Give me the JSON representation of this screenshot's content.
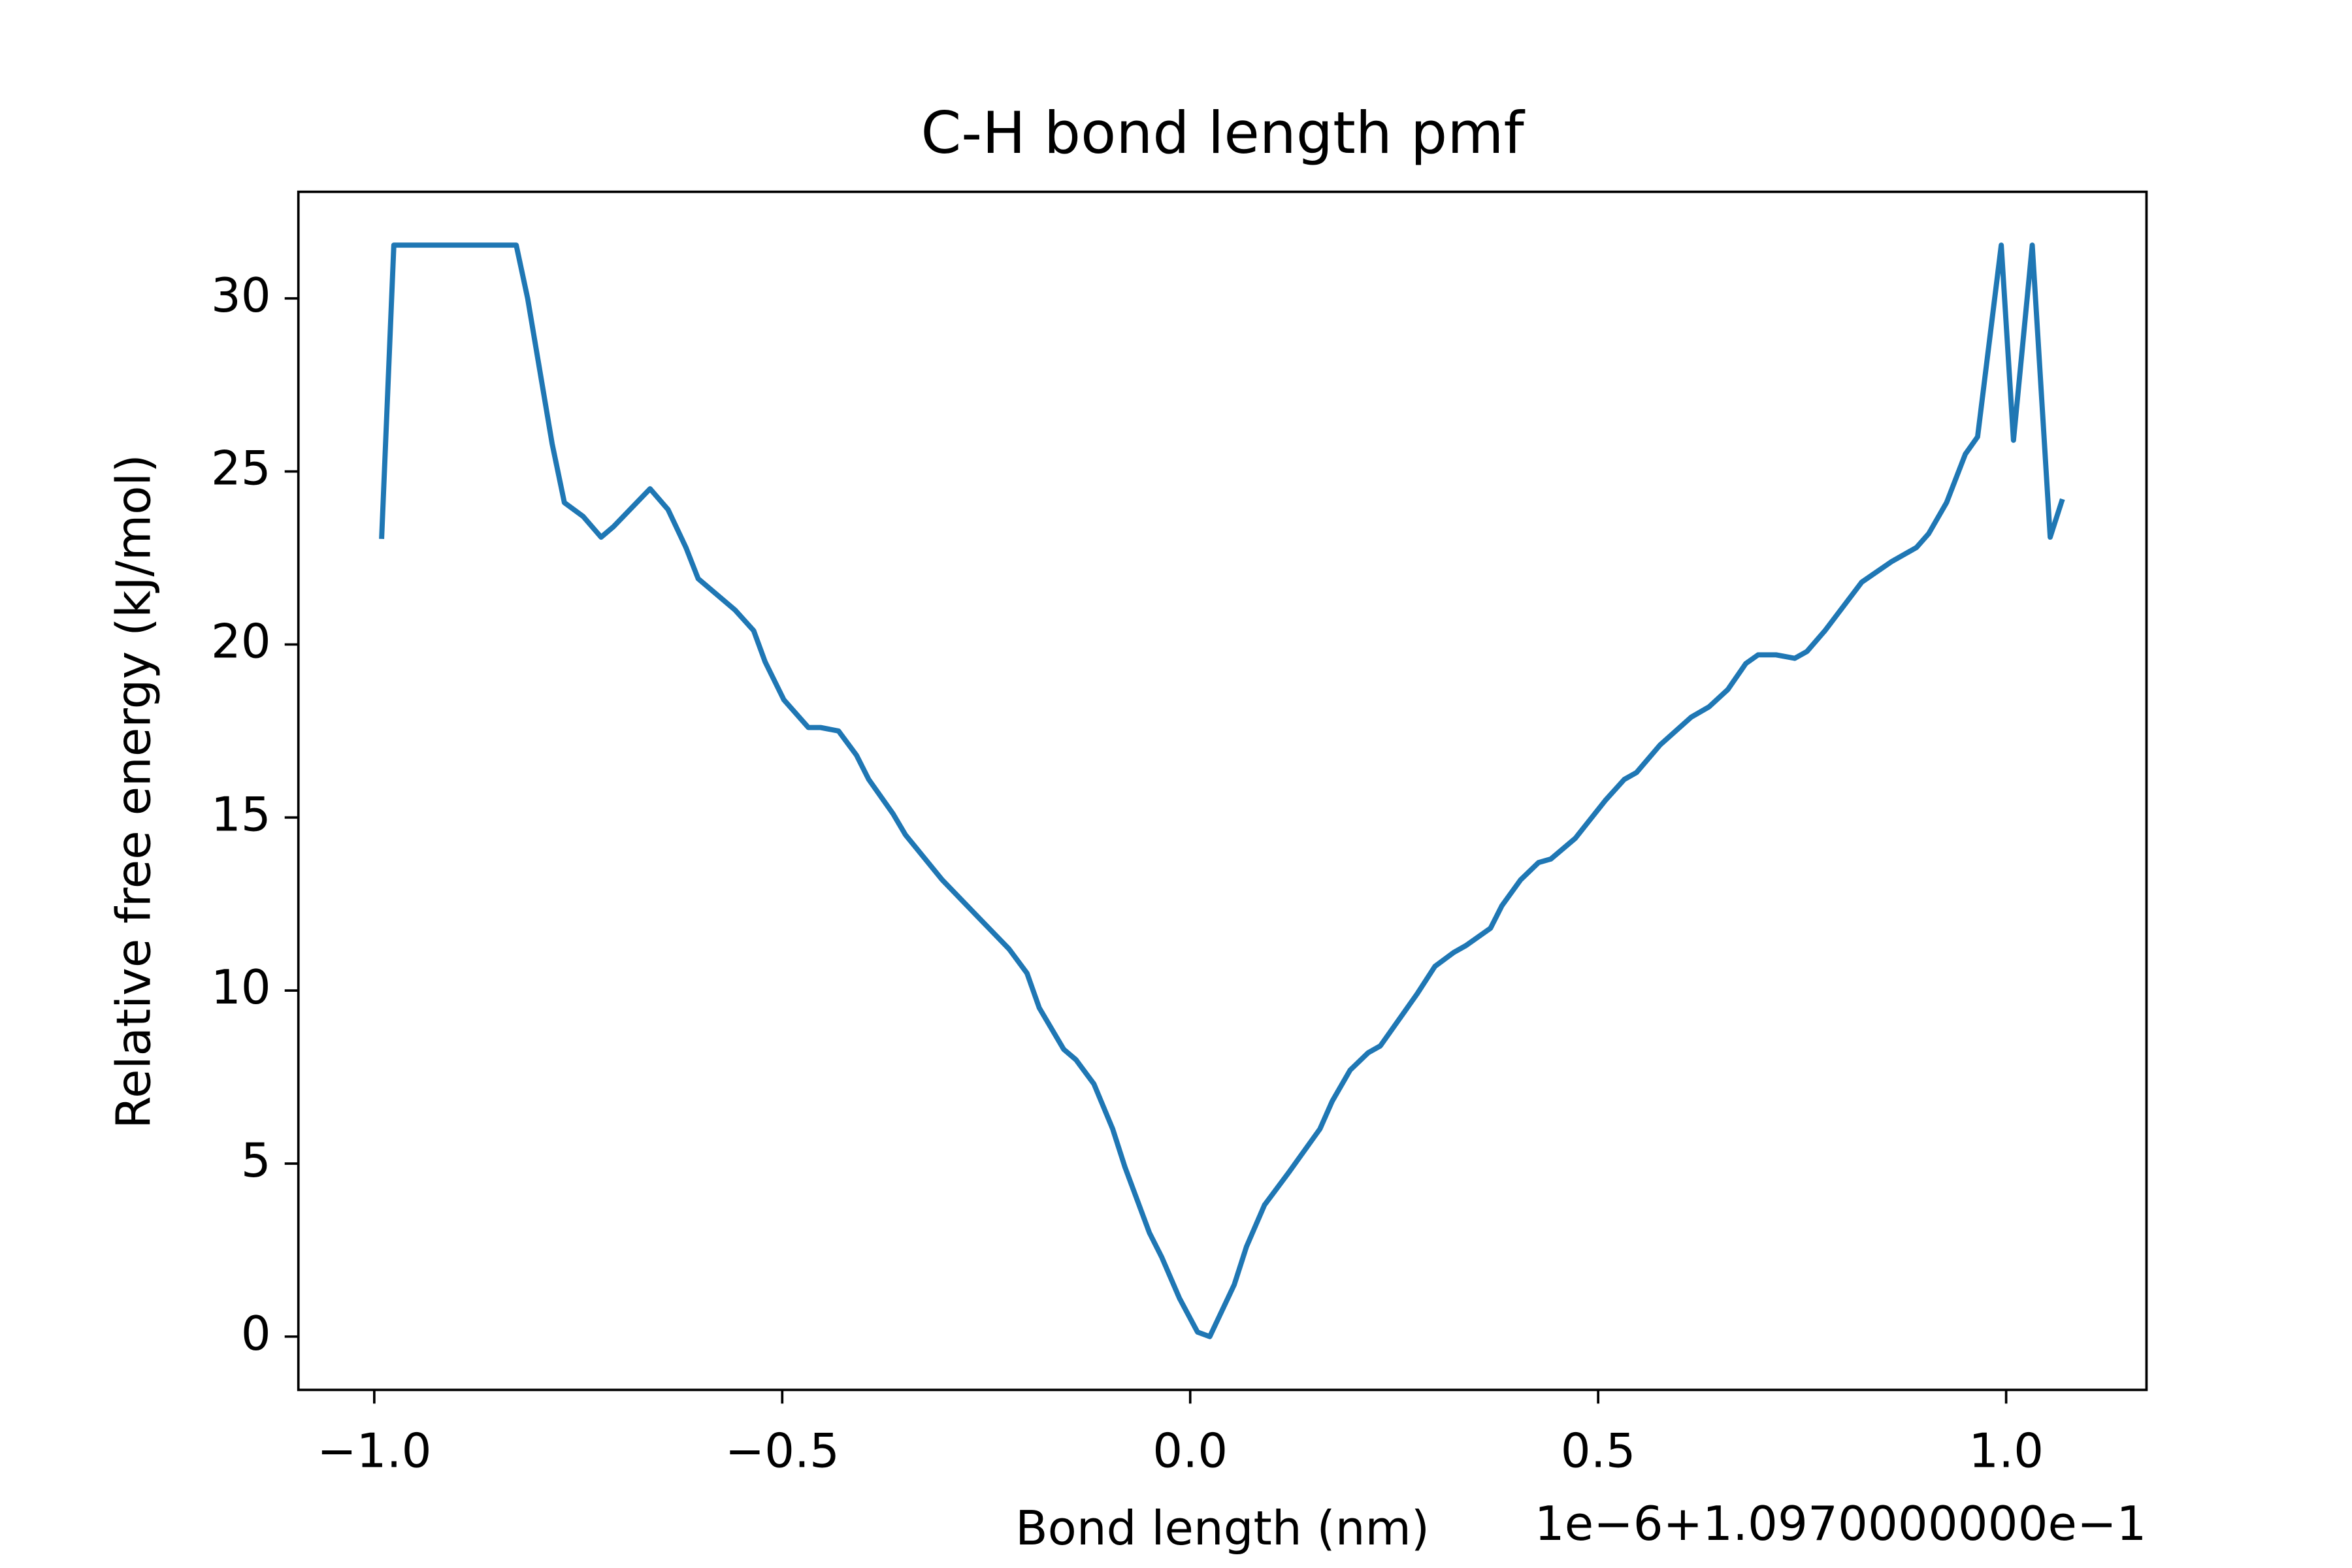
{
  "chart_data": {
    "type": "line",
    "title": "C-H bond length pmf",
    "x_label": "Bond length (nm)",
    "y_label": "Relative free energy (kJ/mol)",
    "x_offset_label": "1e−6+1.0970000000e−1",
    "xlim": [
      -1.093,
      1.172
    ],
    "ylim": [
      -1.54,
      33.08
    ],
    "xticks": [
      {
        "value": -1.0,
        "label": "−1.0"
      },
      {
        "value": -0.5,
        "label": "−0.5"
      },
      {
        "value": 0.0,
        "label": "0.0"
      },
      {
        "value": 0.5,
        "label": "0.5"
      },
      {
        "value": 1.0,
        "label": "1.0"
      }
    ],
    "yticks": [
      0,
      5,
      10,
      15,
      20,
      25,
      30
    ],
    "grid": false,
    "series": [
      {
        "color": "#1f77b4",
        "x": [
          -0.991,
          -0.976,
          -0.826,
          -0.812,
          -0.797,
          -0.782,
          -0.767,
          -0.744,
          -0.722,
          -0.707,
          -0.662,
          -0.64,
          -0.618,
          -0.603,
          -0.558,
          -0.535,
          -0.521,
          -0.498,
          -0.468,
          -0.453,
          -0.431,
          -0.409,
          -0.394,
          -0.364,
          -0.349,
          -0.304,
          -0.259,
          -0.222,
          -0.2,
          -0.185,
          -0.155,
          -0.14,
          -0.118,
          -0.095,
          -0.08,
          -0.05,
          -0.035,
          -0.013,
          0.009,
          0.024,
          0.054,
          0.069,
          0.091,
          0.121,
          0.159,
          0.174,
          0.196,
          0.218,
          0.233,
          0.263,
          0.278,
          0.3,
          0.323,
          0.338,
          0.368,
          0.382,
          0.405,
          0.427,
          0.442,
          0.472,
          0.509,
          0.532,
          0.547,
          0.576,
          0.614,
          0.636,
          0.659,
          0.681,
          0.696,
          0.718,
          0.741,
          0.756,
          0.778,
          0.823,
          0.86,
          0.89,
          0.905,
          0.927,
          0.95,
          0.965,
          0.994,
          1.009,
          1.032,
          1.054,
          1.069
        ],
        "values": [
          23.05,
          31.54,
          31.54,
          30.0,
          27.9,
          25.8,
          24.1,
          23.7,
          23.1,
          23.4,
          24.5,
          23.9,
          22.8,
          21.9,
          21.0,
          20.4,
          19.5,
          18.4,
          17.6,
          17.6,
          17.5,
          16.8,
          16.1,
          15.1,
          14.5,
          13.2,
          12.1,
          11.2,
          10.5,
          9.5,
          8.3,
          8.0,
          7.3,
          6.0,
          4.9,
          3.0,
          2.3,
          1.1,
          0.13,
          0,
          1.5,
          2.6,
          3.8,
          4.75,
          6.0,
          6.8,
          7.7,
          8.2,
          8.4,
          9.4,
          9.9,
          10.7,
          11.1,
          11.3,
          11.8,
          12.45,
          13.2,
          13.7,
          13.8,
          14.4,
          15.5,
          16.1,
          16.3,
          17.1,
          17.9,
          18.2,
          18.7,
          19.45,
          19.7,
          19.7,
          19.6,
          19.8,
          20.4,
          21.8,
          22.4,
          22.8,
          23.2,
          24.1,
          25.5,
          26.0,
          31.54,
          25.9,
          31.54,
          23.1,
          24.2
        ]
      }
    ]
  }
}
